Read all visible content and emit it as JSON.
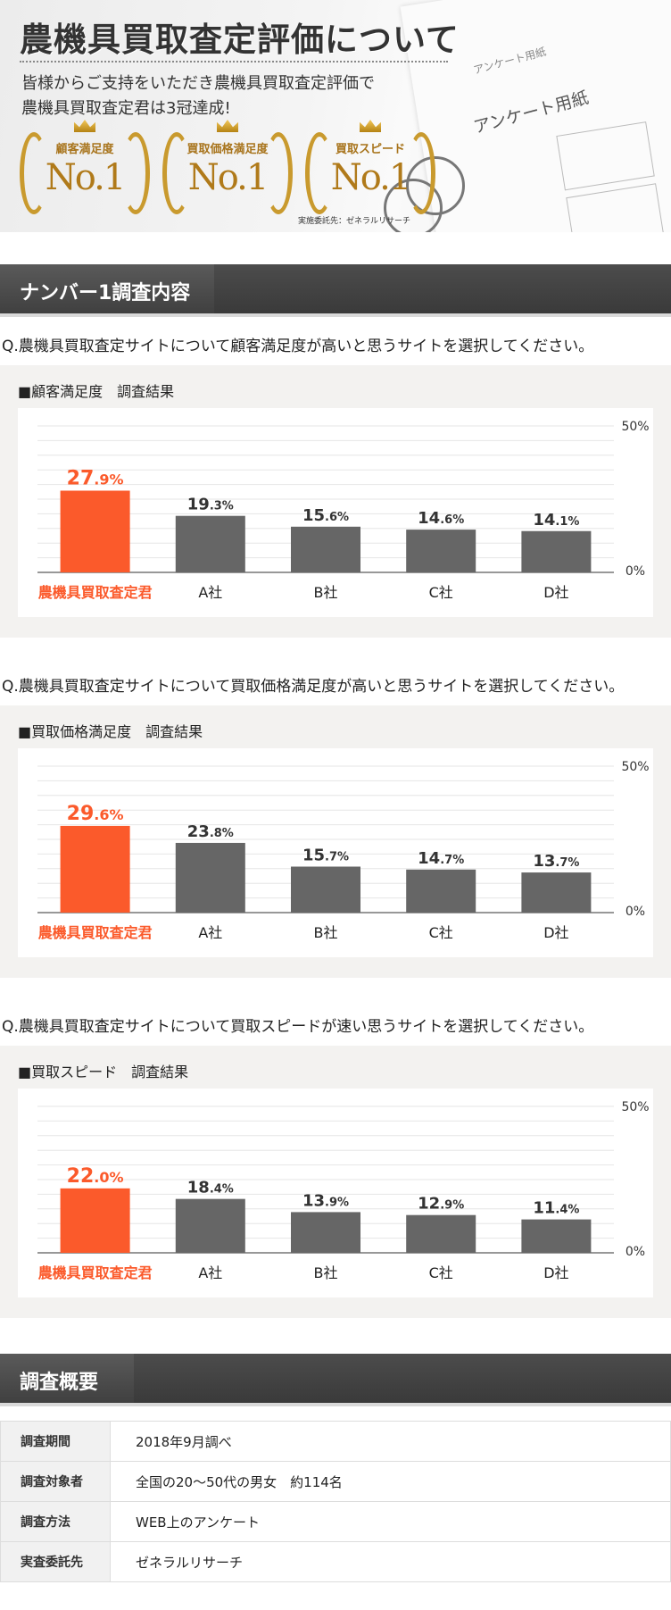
{
  "hero": {
    "title": "農機具買取査定評価について",
    "subtitle_line1": "皆様からご支持をいただき農機具買取査定評価で",
    "subtitle_line2": "農機具買取査定君は3冠達成!",
    "awards": [
      {
        "label": "顧客満足度",
        "value": "No.1"
      },
      {
        "label": "買取価格満足度",
        "value": "No.1"
      },
      {
        "label": "買取スピード",
        "value": "No.1"
      }
    ],
    "credit": "実施委託先：ゼネラルリサーチ",
    "paper_text_small": "アンケート用紙",
    "paper_text_large": "アンケート用紙"
  },
  "section_survey": {
    "title": "ナンバー1調査内容"
  },
  "colors": {
    "highlight": "#fb5a2b",
    "bar": "#666666",
    "panel_bg": "#f3f2f0",
    "section_bg": "#444444"
  },
  "chart_data": [
    {
      "type": "bar",
      "question": "Q.農機具買取査定サイトについて顧客満足度が高いと思うサイトを選択してください。",
      "title": "■顧客満足度　調査結果",
      "categories": [
        "農機具買取査定君",
        "A社",
        "B社",
        "C社",
        "D社"
      ],
      "values": [
        27.9,
        19.3,
        15.6,
        14.6,
        14.1
      ],
      "labels_int": [
        "27",
        "19",
        "15",
        "14",
        "14"
      ],
      "labels_dec": [
        ".9%",
        ".3%",
        ".6%",
        ".6%",
        ".1%"
      ],
      "ylim": [
        0,
        50
      ],
      "ytick_labels": [
        "50%",
        "0%"
      ],
      "grid": true
    },
    {
      "type": "bar",
      "question": "Q.農機具買取査定サイトについて買取価格満足度が高いと思うサイトを選択してください。",
      "title": "■買取価格満足度　調査結果",
      "categories": [
        "農機具買取査定君",
        "A社",
        "B社",
        "C社",
        "D社"
      ],
      "values": [
        29.6,
        23.8,
        15.7,
        14.7,
        13.7
      ],
      "labels_int": [
        "29",
        "23",
        "15",
        "14",
        "13"
      ],
      "labels_dec": [
        ".6%",
        ".8%",
        ".7%",
        ".7%",
        ".7%"
      ],
      "ylim": [
        0,
        50
      ],
      "ytick_labels": [
        "50%",
        "0%"
      ],
      "grid": true
    },
    {
      "type": "bar",
      "question": "Q.農機具買取査定サイトについて買取スピードが速い思うサイトを選択してください。",
      "title": "■買取スピード　調査結果",
      "categories": [
        "農機具買取査定君",
        "A社",
        "B社",
        "C社",
        "D社"
      ],
      "values": [
        22.0,
        18.4,
        13.9,
        12.9,
        11.4
      ],
      "labels_int": [
        "22",
        "18",
        "13",
        "12",
        "11"
      ],
      "labels_dec": [
        ".0%",
        ".4%",
        ".9%",
        ".9%",
        ".4%"
      ],
      "ylim": [
        0,
        50
      ],
      "ytick_labels": [
        "50%",
        "0%"
      ],
      "grid": true
    }
  ],
  "section_summary": {
    "title": "調査概要"
  },
  "summary": [
    {
      "key": "調査期間",
      "value": "2018年9月調べ"
    },
    {
      "key": "調査対象者",
      "value": "全国の20～50代の男女　約114名"
    },
    {
      "key": "調査方法",
      "value": "WEB上のアンケート"
    },
    {
      "key": "実査委託先",
      "value": "ゼネラルリサーチ"
    }
  ]
}
